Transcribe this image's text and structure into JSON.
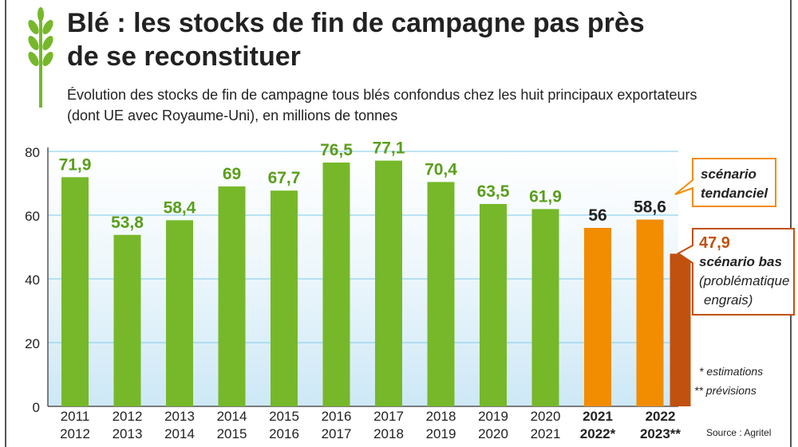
{
  "title": "Blé : les stocks de fin de campagne pas près de se reconstituer",
  "subtitle": "Évolution des stocks de fin de campagne tous blés confondus chez les huit principaux exportateurs (dont UE avec Royaume-Uni), en millions de tonnes",
  "icon": "wheat-icon",
  "colors": {
    "green": "#76b82a",
    "orange": "#f28c00",
    "dark_orange": "#c1510f",
    "label_green": "#5a9e1b",
    "label_dark": "#222222"
  },
  "annotations": {
    "tendanciel": [
      "scénario",
      "tendanciel"
    ],
    "bas_value": "47,9",
    "bas": [
      "scénario bas",
      "(problématique",
      "engrais)"
    ],
    "footnote1": "* estimations",
    "footnote2": "** prévisions",
    "source": "Source : Agritel"
  },
  "chart_data": {
    "type": "bar",
    "title": "Blé : les stocks de fin de campagne pas près de se reconstituer",
    "ylim": [
      0,
      80
    ],
    "yticks": [
      0,
      20,
      40,
      60,
      80
    ],
    "grid": true,
    "categories": [
      [
        "2011",
        "2012"
      ],
      [
        "2012",
        "2013"
      ],
      [
        "2013",
        "2014"
      ],
      [
        "2014",
        "2015"
      ],
      [
        "2015",
        "2016"
      ],
      [
        "2016",
        "2017"
      ],
      [
        "2017",
        "2018"
      ],
      [
        "2018",
        "2019"
      ],
      [
        "2019",
        "2020"
      ],
      [
        "2020",
        "2021"
      ],
      [
        "2021",
        "2022*"
      ],
      [
        "2022",
        "2023**"
      ]
    ],
    "values": [
      71.9,
      53.8,
      58.4,
      69,
      67.7,
      76.5,
      77.1,
      70.4,
      63.5,
      61.9,
      56,
      58.6
    ],
    "value_labels": [
      "71,9",
      "53,8",
      "58,4",
      "69",
      "67,7",
      "76,5",
      "77,1",
      "70,4",
      "63,5",
      "61,9",
      "56",
      "58,6"
    ],
    "bar_kinds": [
      "hist",
      "hist",
      "hist",
      "hist",
      "hist",
      "hist",
      "hist",
      "hist",
      "hist",
      "hist",
      "estimate",
      "forecast"
    ],
    "extra_bar": {
      "category_index": 11,
      "value": 47.9
    }
  }
}
